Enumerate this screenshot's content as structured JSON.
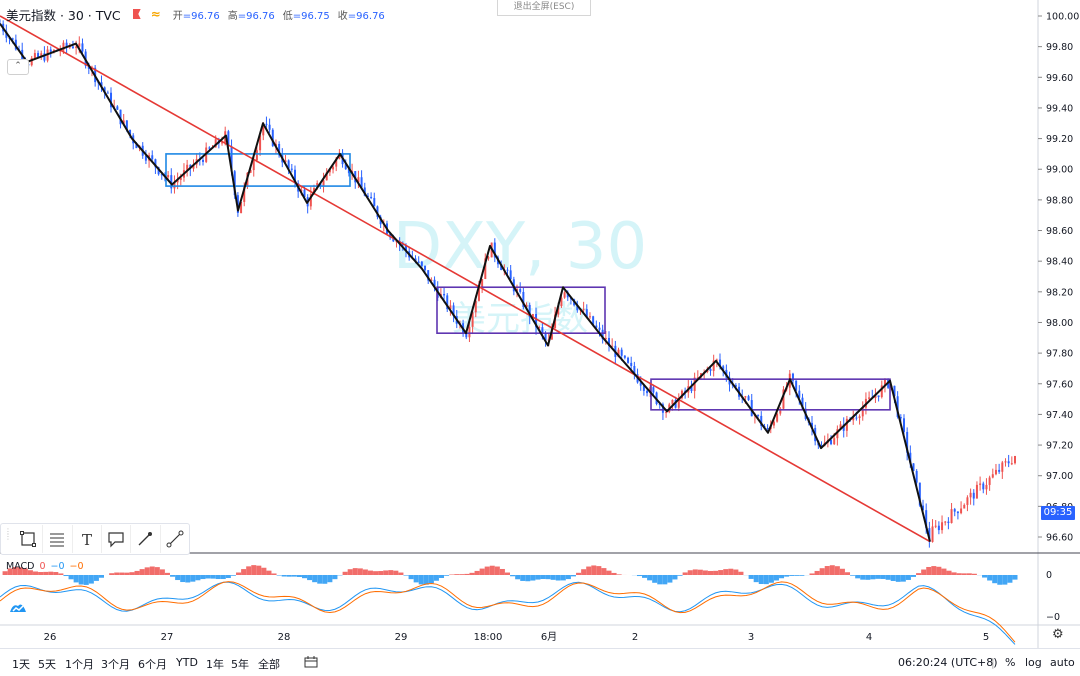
{
  "header": {
    "symbol": "美元指数 · 30 · TVC",
    "open_label": "开",
    "open_value": "=96.76",
    "high_label": "高",
    "high_value": "=96.76",
    "low_label": "低",
    "low_value": "=96.75",
    "close_label": "收",
    "close_value": "=96.76"
  },
  "exit_fullscreen": "退出全屏(ESC)",
  "watermark": {
    "line1": "DXY, 30",
    "line2": "美元指数"
  },
  "price_axis": {
    "labels": [
      "100.00",
      "99.80",
      "99.60",
      "99.40",
      "99.20",
      "99.00",
      "98.80",
      "98.60",
      "98.40",
      "98.20",
      "98.00",
      "97.80",
      "97.60",
      "97.40",
      "97.20",
      "97.00",
      "96.80",
      "96.60"
    ],
    "current_tag": "09:35"
  },
  "time_axis": [
    "26",
    "27",
    "28",
    "29",
    "18:00",
    "6月",
    "2",
    "3",
    "4",
    "5"
  ],
  "macd": {
    "label": "MACD",
    "v1": "0",
    "v2": "−0",
    "v3": "−0",
    "axis_labels": [
      "0",
      "−0"
    ]
  },
  "drawing_toolbar": [
    "rectangle-tool",
    "fib-tool",
    "text-tool",
    "callout-tool",
    "brush-tool",
    "trendline-tool"
  ],
  "bottom_bar": {
    "timeframes": [
      "1天",
      "5天",
      "1个月",
      "3个月",
      "6个月",
      "YTD",
      "1年",
      "5年",
      "全部"
    ],
    "time": "06:20:24 (UTC+8)",
    "percent": "%",
    "log": "log",
    "auto": "auto"
  },
  "colors": {
    "up": "#ef5350",
    "down": "#2962ff",
    "trendline": "#e53935",
    "zigzag": "#111111",
    "box_blue": "#1e88e5",
    "box_purple": "#5e35b1",
    "macd_line": "#2196f3",
    "signal_line": "#ff6d00"
  },
  "chart_data": {
    "type": "line",
    "title": "",
    "price_range": [
      96.5,
      100.05
    ],
    "x_domain": [
      0,
      100
    ],
    "zigzag": [
      {
        "x": 0,
        "price": 99.95
      },
      {
        "x": 2.7,
        "price": 99.7
      },
      {
        "x": 7.6,
        "price": 99.82
      },
      {
        "x": 13.2,
        "price": 99.2
      },
      {
        "x": 17.2,
        "price": 98.9
      },
      {
        "x": 22.6,
        "price": 99.22
      },
      {
        "x": 23.8,
        "price": 98.73
      },
      {
        "x": 26.3,
        "price": 99.3
      },
      {
        "x": 30.7,
        "price": 98.78
      },
      {
        "x": 34.0,
        "price": 99.1
      },
      {
        "x": 38.8,
        "price": 98.6
      },
      {
        "x": 42.2,
        "price": 98.35
      },
      {
        "x": 46.6,
        "price": 97.93
      },
      {
        "x": 49.0,
        "price": 98.5
      },
      {
        "x": 54.8,
        "price": 97.85
      },
      {
        "x": 56.3,
        "price": 98.23
      },
      {
        "x": 60.3,
        "price": 97.9
      },
      {
        "x": 66.7,
        "price": 97.42
      },
      {
        "x": 71.6,
        "price": 97.75
      },
      {
        "x": 76.8,
        "price": 97.28
      },
      {
        "x": 79.0,
        "price": 97.63
      },
      {
        "x": 82.1,
        "price": 97.18
      },
      {
        "x": 89.0,
        "price": 97.62
      },
      {
        "x": 93.0,
        "price": 96.57
      }
    ],
    "trendline": [
      {
        "x": 0,
        "price": 100.0
      },
      {
        "x": 93.0,
        "price": 96.57
      }
    ],
    "range_boxes": [
      {
        "x1": 16.6,
        "x2": 35.0,
        "top": 99.1,
        "bottom": 98.89,
        "color": "blue"
      },
      {
        "x1": 43.7,
        "x2": 60.5,
        "top": 98.23,
        "bottom": 97.93,
        "color": "purple"
      },
      {
        "x1": 65.1,
        "x2": 89.0,
        "top": 97.63,
        "bottom": 97.43,
        "color": "purple"
      }
    ],
    "last_price": 96.76
  }
}
